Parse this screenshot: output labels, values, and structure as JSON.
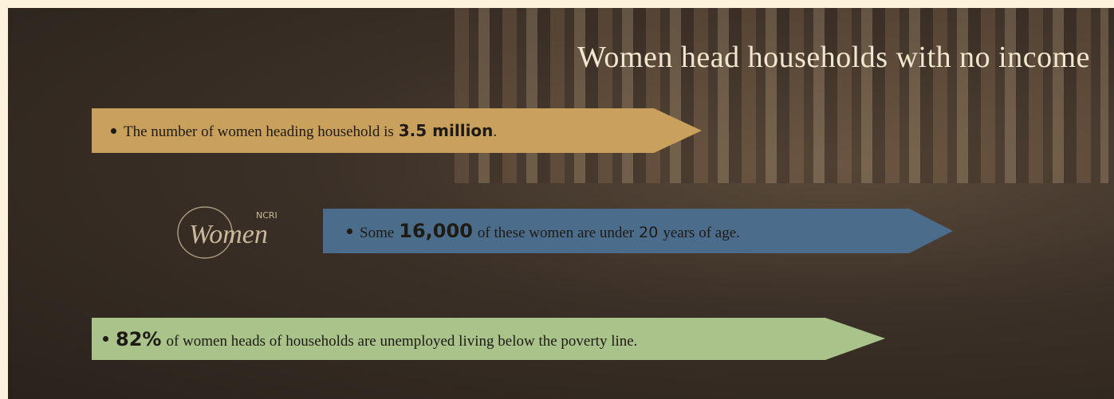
{
  "header": {
    "title": "Women head households with no income"
  },
  "logo": {
    "org": "NCRI",
    "name": "Women"
  },
  "banners": [
    {
      "parts": [
        "The number of women heading household is",
        "3.5 million",
        "."
      ]
    },
    {
      "parts": [
        "Some",
        "16,000",
        "of these women are under",
        "20",
        "years of age."
      ]
    },
    {
      "parts": [
        "82%",
        "of women heads of households are unemployed living below the poverty line."
      ]
    }
  ]
}
